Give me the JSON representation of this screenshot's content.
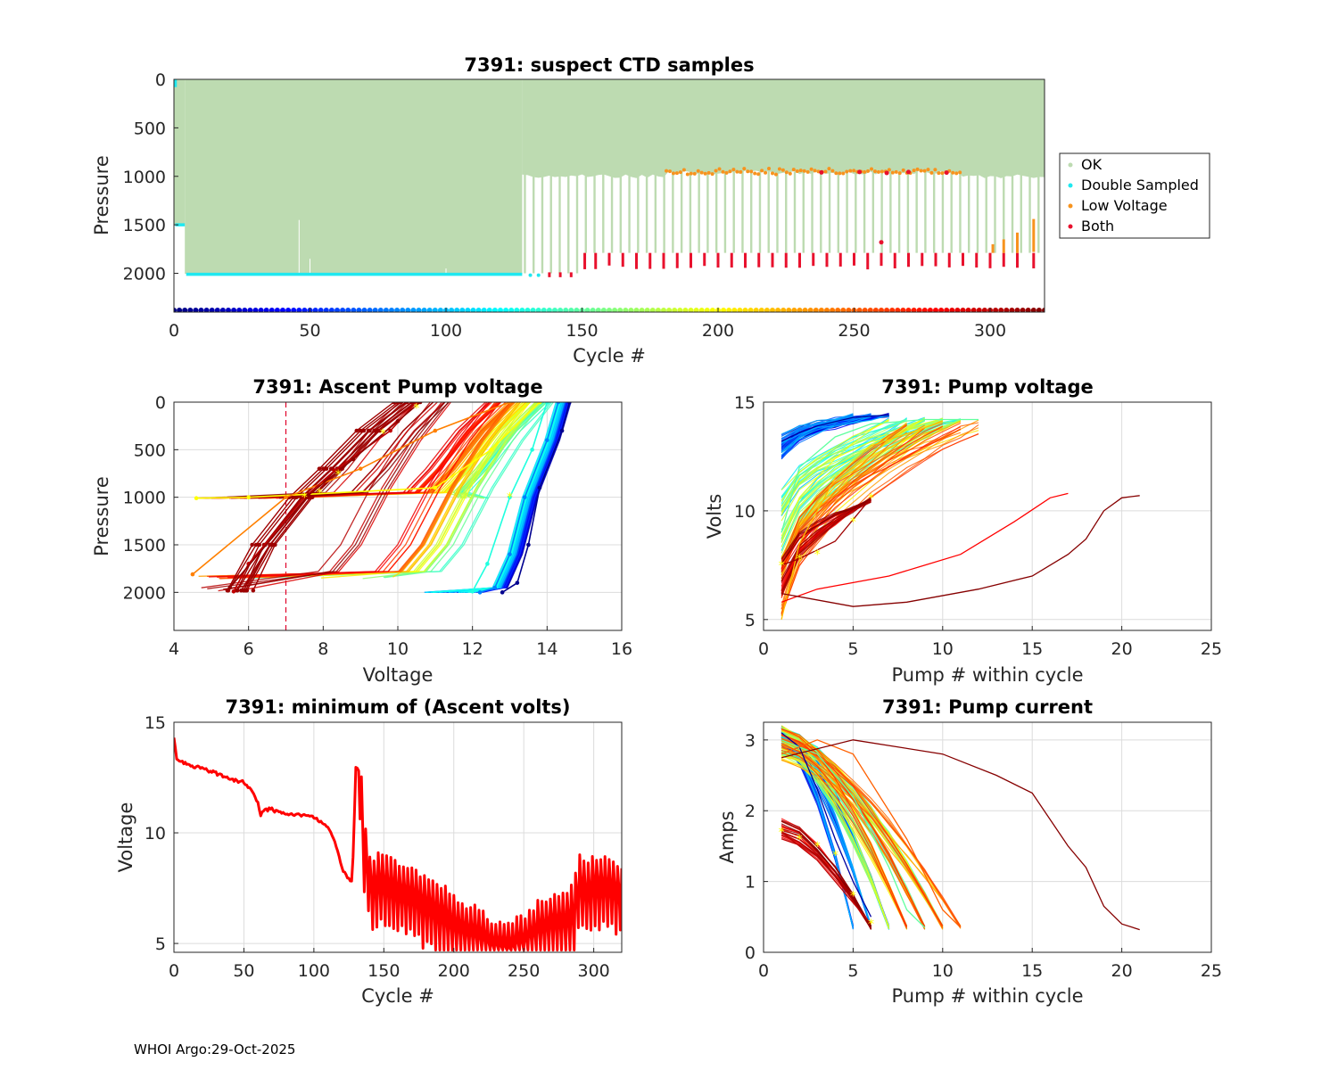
{
  "footer": "WHOI Argo:29-Oct-2025",
  "chart_data": [
    {
      "id": "p1",
      "type": "scatter",
      "title": "7391: suspect CTD samples",
      "xlabel": "Cycle #",
      "ylabel": "Pressure",
      "xlim": [
        0,
        320
      ],
      "ylim": [
        0,
        2400
      ],
      "y_reversed": true,
      "xticks": [
        0,
        50,
        100,
        150,
        200,
        250,
        300
      ],
      "yticks": [
        0,
        500,
        1000,
        1500,
        2000
      ],
      "legend": {
        "position": "outside-right",
        "entries": [
          {
            "label": "OK",
            "color": "#bddbb1"
          },
          {
            "label": "Double Sampled",
            "color": "#1fe8f0"
          },
          {
            "label": "Low Voltage",
            "color": "#f7931e"
          },
          {
            "label": "Both",
            "color": "#e8112d"
          }
        ]
      },
      "profile_depth_regimes": [
        {
          "cycles": [
            1,
            4
          ],
          "bottom_pressure": 1500
        },
        {
          "cycles": [
            5,
            128
          ],
          "bottom_pressure": 2000
        },
        {
          "cycles": [
            129,
            320
          ],
          "bottom_pressure": 1000,
          "note": "sparse deep profiles to ~1800-2000 every ~3 cycles"
        }
      ],
      "double_sampled": {
        "cycles": [
          1,
          128
        ],
        "pressure_bands": [
          1500,
          2010
        ]
      },
      "low_voltage_near_1000_cycles": [
        180,
        290
      ],
      "both_deep_cycles": [
        138,
        142,
        146,
        151,
        155,
        160,
        165,
        170,
        175,
        180,
        185,
        190,
        195,
        200,
        205,
        210,
        215,
        220,
        225,
        230,
        235,
        240,
        245,
        250,
        255,
        260,
        265,
        270,
        275,
        280,
        285,
        290,
        295,
        300,
        305,
        310,
        316
      ],
      "colorbar": "cycle index, jet colormap 0-320"
    },
    {
      "id": "p2",
      "type": "line",
      "title": "7391: Ascent Pump voltage",
      "xlabel": "Voltage",
      "ylabel": "Pressure",
      "xlim": [
        4,
        16
      ],
      "ylim": [
        0,
        2400
      ],
      "y_reversed": true,
      "xticks": [
        4,
        6,
        8,
        10,
        12,
        14,
        16
      ],
      "yticks": [
        0,
        500,
        1000,
        1500,
        2000
      ],
      "threshold_voltage": 7,
      "example_profiles": [
        {
          "cycle": 5,
          "points": [
            [
              14.6,
              0
            ],
            [
              14.4,
              300
            ],
            [
              13.8,
              900
            ],
            [
              13.5,
              1500
            ],
            [
              13.2,
              1900
            ],
            [
              12.8,
              2000
            ]
          ]
        },
        {
          "cycle": 80,
          "points": [
            [
              14.3,
              0
            ],
            [
              14.0,
              400
            ],
            [
              13.4,
              1000
            ],
            [
              13.0,
              1600
            ],
            [
              12.6,
              1950
            ],
            [
              12.2,
              2000
            ]
          ]
        },
        {
          "cycle": 130,
          "points": [
            [
              14.0,
              0
            ],
            [
              13.6,
              500
            ],
            [
              13.0,
              1000
            ],
            [
              12.4,
              1700
            ],
            [
              12.0,
              1990
            ]
          ]
        },
        {
          "cycle": 200,
          "points": [
            [
              13.8,
              0
            ],
            [
              12.5,
              500
            ],
            [
              11.0,
              900
            ],
            [
              6.0,
              1000
            ],
            [
              4.6,
              1010
            ]
          ]
        },
        {
          "cycle": 240,
          "points": [
            [
              13.0,
              0
            ],
            [
              11.0,
              300
            ],
            [
              9.0,
              700
            ],
            [
              7.0,
              1000
            ],
            [
              4.5,
              1810
            ]
          ]
        },
        {
          "cycle": 300,
          "points": [
            [
              10.5,
              0
            ],
            [
              9.8,
              300
            ],
            [
              8.3,
              720
            ],
            [
              7.5,
              1000
            ],
            [
              6.0,
              1700
            ],
            [
              5.6,
              1990
            ]
          ]
        },
        {
          "cycle": 315,
          "points": [
            [
              10.6,
              0
            ],
            [
              10.0,
              200
            ],
            [
              8.8,
              600
            ],
            [
              7.6,
              980
            ],
            [
              5.5,
              1950
            ]
          ]
        }
      ]
    },
    {
      "id": "p3",
      "type": "line",
      "title": "7391: Pump voltage",
      "xlabel": "Pump # within cycle",
      "ylabel": "Volts",
      "xlim": [
        0,
        25
      ],
      "ylim": [
        4.5,
        15
      ],
      "xticks": [
        0,
        5,
        10,
        15,
        20,
        25
      ],
      "yticks": [
        5,
        10,
        15
      ],
      "example_series": [
        {
          "cycle": 10,
          "points": [
            [
              1,
              13.2
            ],
            [
              2,
              13.6
            ],
            [
              3,
              13.9
            ],
            [
              4,
              14.1
            ],
            [
              5,
              14.3
            ],
            [
              7,
              14.4
            ]
          ]
        },
        {
          "cycle": 150,
          "points": [
            [
              1,
              9.0
            ],
            [
              2,
              12.0
            ],
            [
              4,
              13.4
            ],
            [
              6,
              14.0
            ],
            [
              9,
              14.2
            ],
            [
              12,
              14.2
            ]
          ]
        },
        {
          "cycle": 220,
          "points": [
            [
              1,
              5.0
            ],
            [
              2,
              8.5
            ],
            [
              4,
              11.5
            ],
            [
              6,
              13.0
            ],
            [
              10,
              14.1
            ]
          ]
        },
        {
          "cycle": 280,
          "points": [
            [
              1,
              5.8
            ],
            [
              3,
              6.4
            ],
            [
              7,
              7.0
            ],
            [
              11,
              8.0
            ],
            [
              14,
              9.5
            ],
            [
              16,
              10.6
            ],
            [
              17,
              10.8
            ]
          ]
        },
        {
          "cycle": 318,
          "points": [
            [
              1,
              6.2
            ],
            [
              5,
              5.6
            ],
            [
              8,
              5.8
            ],
            [
              12,
              6.4
            ],
            [
              15,
              7.0
            ],
            [
              17,
              8.0
            ],
            [
              18,
              8.7
            ],
            [
              19,
              10.0
            ],
            [
              20,
              10.6
            ],
            [
              21,
              10.7
            ]
          ]
        },
        {
          "cycle": 310,
          "points": [
            [
              1,
              7.5
            ],
            [
              2,
              7.8
            ],
            [
              3,
              8.2
            ],
            [
              4,
              8.6
            ],
            [
              5,
              9.6
            ],
            [
              6,
              10.6
            ]
          ]
        }
      ]
    },
    {
      "id": "p4",
      "type": "line",
      "title": "7391: minimum of (Ascent volts)",
      "xlabel": "Cycle #",
      "ylabel": "Voltage",
      "xlim": [
        0,
        320
      ],
      "ylim": [
        4.6,
        15
      ],
      "xticks": [
        0,
        50,
        100,
        150,
        200,
        250,
        300
      ],
      "yticks": [
        5,
        10,
        15
      ],
      "color": "#ff0000",
      "x": [
        0,
        2,
        5,
        10,
        20,
        30,
        40,
        50,
        55,
        60,
        62,
        65,
        70,
        72,
        75,
        80,
        90,
        100,
        110,
        115,
        120,
        125,
        127,
        128,
        130,
        133,
        135,
        140,
        150,
        160,
        170,
        180,
        190,
        200,
        210,
        220,
        230,
        240,
        250,
        260,
        270,
        280,
        285,
        290,
        295,
        300,
        310,
        320
      ],
      "y": [
        14.3,
        13.4,
        13.2,
        13.1,
        12.9,
        12.7,
        12.4,
        12.3,
        11.9,
        11.4,
        10.8,
        11.0,
        11.1,
        11.0,
        10.9,
        10.9,
        10.8,
        10.7,
        10.3,
        9.6,
        8.4,
        7.9,
        7.8,
        8.9,
        12.9,
        12.8,
        10.0,
        7.8,
        7.9,
        7.6,
        7.3,
        6.9,
        6.5,
        6.0,
        5.6,
        5.2,
        4.9,
        4.8,
        5.1,
        5.7,
        6.0,
        6.1,
        6.4,
        7.8,
        7.4,
        7.9,
        7.7,
        7.4
      ],
      "oscillation_start_cycle": 133
    },
    {
      "id": "p5",
      "type": "line",
      "title": "7391: Pump current",
      "xlabel": "Pump # within cycle",
      "ylabel": "Amps",
      "xlim": [
        0,
        25
      ],
      "ylim": [
        0,
        3.25
      ],
      "xticks": [
        0,
        5,
        10,
        15,
        20,
        25
      ],
      "yticks": [
        0,
        1,
        2,
        3
      ],
      "example_series": [
        {
          "cycle": 10,
          "points": [
            [
              1,
              3.1
            ],
            [
              2,
              2.9
            ],
            [
              3,
              2.3
            ],
            [
              4,
              1.6
            ],
            [
              5,
              1.0
            ],
            [
              6,
              0.5
            ]
          ]
        },
        {
          "cycle": 150,
          "points": [
            [
              1,
              3.0
            ],
            [
              3,
              2.8
            ],
            [
              5,
              2.2
            ],
            [
              7,
              1.2
            ],
            [
              8,
              0.6
            ],
            [
              9,
              0.35
            ]
          ]
        },
        {
          "cycle": 250,
          "points": [
            [
              1,
              2.8
            ],
            [
              3,
              3.0
            ],
            [
              5,
              2.8
            ],
            [
              8,
              1.6
            ],
            [
              10,
              0.6
            ],
            [
              11,
              0.35
            ]
          ]
        },
        {
          "cycle": 300,
          "points": [
            [
              1,
              1.7
            ],
            [
              2,
              1.5
            ],
            [
              3,
              1.3
            ],
            [
              4,
              1.0
            ],
            [
              5,
              0.7
            ],
            [
              6,
              0.4
            ]
          ]
        },
        {
          "cycle": 318,
          "points": [
            [
              1,
              2.75
            ],
            [
              5,
              3.0
            ],
            [
              10,
              2.8
            ],
            [
              13,
              2.5
            ],
            [
              15,
              2.25
            ],
            [
              17,
              1.5
            ],
            [
              18,
              1.2
            ],
            [
              19,
              0.65
            ],
            [
              20,
              0.4
            ],
            [
              21,
              0.32
            ]
          ]
        }
      ]
    }
  ]
}
